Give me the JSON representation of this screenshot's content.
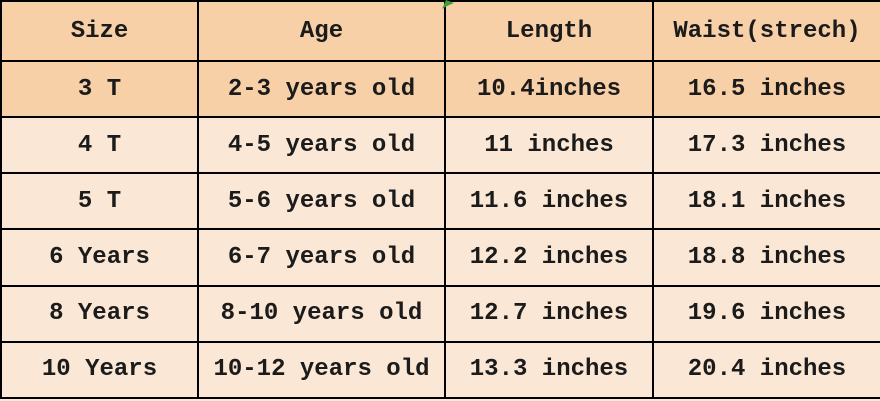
{
  "colors": {
    "highlight_bg": "#f8d0a8",
    "row_bg": "#fae7d5",
    "grid_border": "#000000",
    "text": "#1b1b1b",
    "leaf_accent": "#3f9c38"
  },
  "chart_data": {
    "type": "table",
    "title": "",
    "columns": [
      "Size",
      "Age",
      "Length",
      "Waist(strech)"
    ],
    "rows": [
      [
        "3 T",
        "2-3 years old",
        "10.4inches",
        "16.5 inches"
      ],
      [
        "4 T",
        "4-5 years old",
        "11 inches",
        "17.3 inches"
      ],
      [
        "5 T",
        "5-6 years old",
        "11.6 inches",
        "18.1 inches"
      ],
      [
        "6 Years",
        "6-7 years old",
        "12.2 inches",
        "18.8 inches"
      ],
      [
        "8 Years",
        "8-10 years old",
        "12.7 inches",
        "19.6 inches"
      ],
      [
        "10 Years",
        "10-12 years old",
        "13.3 inches",
        "20.4 inches"
      ]
    ],
    "highlighted_rows": [
      0
    ],
    "layout_hints": {
      "grid": "on",
      "header_row_highlighted": true
    }
  }
}
